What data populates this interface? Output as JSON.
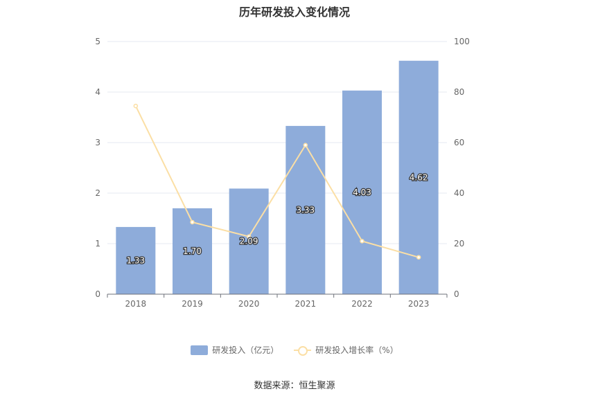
{
  "source": "数据来源：恒生聚源",
  "chart_data": {
    "type": "bar",
    "title": "历年研发投入变化情况",
    "categories": [
      "2018",
      "2019",
      "2020",
      "2021",
      "2022",
      "2023"
    ],
    "series": [
      {
        "name": "研发投入（亿元）",
        "type": "bar",
        "axis": "left",
        "color": "#8eacda",
        "values": [
          1.33,
          1.7,
          2.09,
          3.33,
          4.03,
          4.62
        ],
        "labels": [
          "1.33",
          "1.70",
          "2.09",
          "3.33",
          "4.03",
          "4.62"
        ]
      },
      {
        "name": "研发投入增长率（%）",
        "type": "line",
        "axis": "right",
        "color": "#fbdfa5",
        "values": [
          74.5,
          28.5,
          22.8,
          59.0,
          21.0,
          14.6
        ]
      }
    ],
    "y_left": {
      "min": 0,
      "max": 5,
      "ticks": [
        "0",
        "1",
        "2",
        "3",
        "4",
        "5"
      ]
    },
    "y_right": {
      "min": 0,
      "max": 100,
      "ticks": [
        "0",
        "20",
        "40",
        "60",
        "80",
        "100"
      ]
    },
    "grid": true,
    "legend_position": "bottom"
  }
}
